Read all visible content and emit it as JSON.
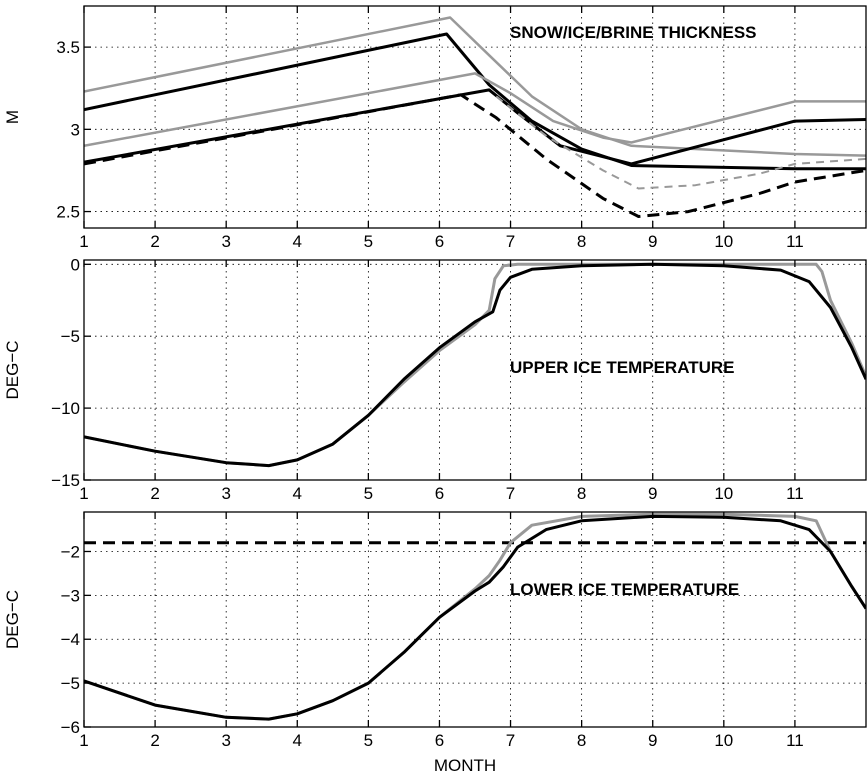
{
  "chart_data": [
    {
      "type": "line",
      "title": "SNOW/ICE/BRINE THICKNESS",
      "ylabel": "M",
      "xlabel": "",
      "xlim": [
        1,
        12
      ],
      "ylim": [
        2.4,
        3.75
      ],
      "xticks": [
        1,
        2,
        3,
        4,
        5,
        6,
        7,
        8,
        9,
        10,
        11
      ],
      "yticks": [
        2.5,
        3,
        3.5
      ],
      "grid": true,
      "series": [
        {
          "style": "solid",
          "color": "#999999",
          "width": 2.5,
          "x": [
            1,
            6.15,
            6.7,
            7.3,
            8,
            8.7,
            11,
            12
          ],
          "y": [
            3.23,
            3.68,
            3.45,
            3.2,
            3.0,
            2.9,
            2.85,
            2.84
          ]
        },
        {
          "style": "solid",
          "color": "#000000",
          "width": 3,
          "x": [
            1,
            6.1,
            6.7,
            7.3,
            8,
            8.7,
            11,
            12
          ],
          "y": [
            3.12,
            3.58,
            3.27,
            3.05,
            2.88,
            2.78,
            2.76,
            2.76
          ]
        },
        {
          "style": "solid",
          "color": "#999999",
          "width": 2.5,
          "x": [
            1,
            6.5,
            7,
            7.6,
            8.3,
            8.7,
            11,
            12
          ],
          "y": [
            2.9,
            3.34,
            3.22,
            3.05,
            2.95,
            2.92,
            3.17,
            3.17
          ]
        },
        {
          "style": "solid",
          "color": "#000000",
          "width": 3,
          "x": [
            1,
            6.7,
            7.1,
            7.7,
            8.7,
            11,
            12
          ],
          "y": [
            2.8,
            3.24,
            3.1,
            2.9,
            2.79,
            3.05,
            3.06
          ]
        },
        {
          "style": "dashed",
          "color": "#000000",
          "width": 3,
          "x": [
            1,
            6.3,
            6.8,
            7.5,
            8.3,
            8.8,
            9.5,
            10.5,
            11,
            12
          ],
          "y": [
            2.79,
            3.21,
            3.07,
            2.82,
            2.58,
            2.47,
            2.5,
            2.61,
            2.68,
            2.75
          ]
        },
        {
          "style": "dashed",
          "color": "#999999",
          "width": 2,
          "x": [
            6.8,
            7.5,
            8.3,
            8.8,
            9.6,
            10.5,
            11,
            12
          ],
          "y": [
            3.2,
            2.96,
            2.75,
            2.64,
            2.66,
            2.73,
            2.79,
            2.82
          ]
        }
      ]
    },
    {
      "type": "line",
      "title": "UPPER ICE TEMPERATURE",
      "ylabel": "DEG−C",
      "xlabel": "",
      "xlim": [
        1,
        12
      ],
      "ylim": [
        -15,
        0.3
      ],
      "xticks": [
        1,
        2,
        3,
        4,
        5,
        6,
        7,
        8,
        9,
        10,
        11
      ],
      "yticks": [
        -15,
        -10,
        -5,
        0
      ],
      "grid": true,
      "series": [
        {
          "style": "solid",
          "color": "#999999",
          "width": 3,
          "x": [
            1,
            2,
            3,
            3.6,
            4,
            4.5,
            5,
            5.5,
            6,
            6.5,
            6.7,
            6.78,
            6.9,
            7.1,
            7.5,
            8,
            9,
            10,
            11,
            11.3,
            11.38,
            11.5,
            11.8,
            12
          ],
          "y": [
            -12,
            -13,
            -13.8,
            -14,
            -13.6,
            -12.5,
            -10.5,
            -8.2,
            -6,
            -4.2,
            -3.2,
            -1,
            -0.1,
            0,
            0,
            0,
            0,
            0,
            0,
            0,
            -0.5,
            -2.5,
            -5.5,
            -7.8
          ]
        },
        {
          "style": "solid",
          "color": "#000000",
          "width": 3,
          "x": [
            1,
            2,
            3,
            3.6,
            4,
            4.5,
            5,
            5.5,
            6,
            6.5,
            6.75,
            6.85,
            7,
            7.3,
            8,
            9,
            10,
            10.8,
            11.2,
            11.5,
            11.8,
            12
          ],
          "y": [
            -12,
            -13,
            -13.8,
            -14,
            -13.6,
            -12.5,
            -10.5,
            -8,
            -5.8,
            -4,
            -3.3,
            -1.8,
            -0.9,
            -0.35,
            -0.1,
            0,
            -0.1,
            -0.4,
            -1.2,
            -3,
            -5.8,
            -8
          ]
        }
      ]
    },
    {
      "type": "line",
      "title": "LOWER ICE TEMPERATURE",
      "ylabel": "DEG−C",
      "xlabel": "MONTH",
      "xlim": [
        1,
        12
      ],
      "ylim": [
        -6,
        -1.1
      ],
      "xticks": [
        1,
        2,
        3,
        4,
        5,
        6,
        7,
        8,
        9,
        10,
        11
      ],
      "yticks": [
        -6,
        -5,
        -4,
        -3,
        -2
      ],
      "grid": true,
      "series": [
        {
          "style": "dashed",
          "color": "#000000",
          "width": 3,
          "x": [
            1,
            12
          ],
          "y": [
            -1.8,
            -1.8
          ]
        },
        {
          "style": "solid",
          "color": "#999999",
          "width": 3,
          "x": [
            1,
            2,
            3,
            3.6,
            4,
            4.5,
            5,
            5.5,
            6,
            6.5,
            6.7,
            6.85,
            7,
            7.3,
            8,
            9,
            10,
            11,
            11.3,
            11.5,
            11.8,
            12
          ],
          "y": [
            -4.95,
            -5.5,
            -5.78,
            -5.82,
            -5.7,
            -5.4,
            -5,
            -4.3,
            -3.5,
            -2.85,
            -2.55,
            -2.2,
            -1.8,
            -1.4,
            -1.2,
            -1.15,
            -1.15,
            -1.2,
            -1.3,
            -2,
            -2.8,
            -3.3
          ]
        },
        {
          "style": "solid",
          "color": "#000000",
          "width": 3,
          "x": [
            1,
            2,
            3,
            3.6,
            4,
            4.5,
            5,
            5.5,
            6,
            6.5,
            6.7,
            6.9,
            7.1,
            7.5,
            8,
            9,
            10,
            10.8,
            11.2,
            11.5,
            11.8,
            12
          ],
          "y": [
            -4.95,
            -5.5,
            -5.78,
            -5.82,
            -5.7,
            -5.4,
            -5,
            -4.3,
            -3.5,
            -2.9,
            -2.7,
            -2.35,
            -1.9,
            -1.5,
            -1.3,
            -1.2,
            -1.22,
            -1.3,
            -1.5,
            -2,
            -2.8,
            -3.3
          ]
        }
      ]
    }
  ]
}
